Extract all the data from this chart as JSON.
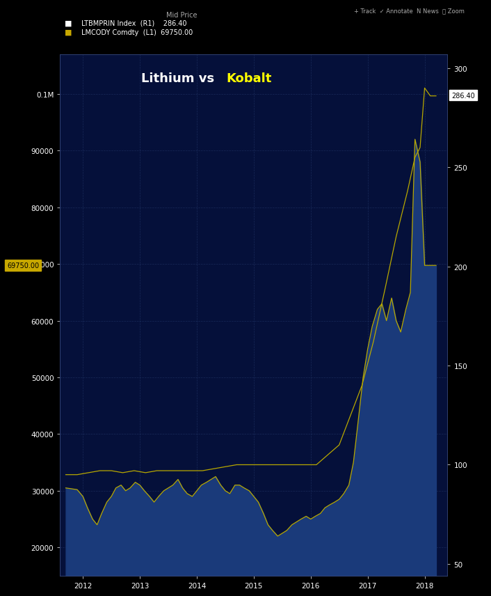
{
  "title_white": "Lithium vs  ",
  "title_yellow": "Kobalt",
  "bg_color": "#000000",
  "plot_bg_color": "#05103a",
  "fill_color": "#1a3a7a",
  "line_color": "#b8a800",
  "axis_color": "#ffffff",
  "grid_color": "#1e3060",
  "legend_label1": "LTBMPRIN Index  (R1)    286.40",
  "legend_label2": "LMCODY Comdty  (L1)  69750.00",
  "header_text": "Mid Price",
  "label_286": "286.40",
  "label_69750": "69750.00",
  "left_ylim": [
    15000,
    107000
  ],
  "right_ylim": [
    44,
    307
  ],
  "left_yticks": [
    20000,
    30000,
    40000,
    50000,
    60000,
    70000,
    80000,
    90000,
    100000
  ],
  "left_ytick_labels": [
    "20000",
    "30000",
    "40000",
    "50000",
    "60000",
    "70000",
    "80000",
    "90000",
    "0.1M"
  ],
  "right_yticks": [
    50,
    100,
    150,
    200,
    250,
    300
  ],
  "right_ytick_labels": [
    "50",
    "100",
    "150",
    "200",
    "250",
    "300"
  ],
  "xlim_start": 2011.6,
  "xlim_end": 2018.4,
  "xtick_positions": [
    2012,
    2013,
    2014,
    2015,
    2016,
    2017,
    2018
  ],
  "xtick_labels": [
    "2012",
    "2013",
    "2014",
    "2015",
    "2016",
    "2017",
    "2018"
  ],
  "cobalt_x": [
    2011.7,
    2011.9,
    2012.0,
    2012.08,
    2012.17,
    2012.25,
    2012.33,
    2012.42,
    2012.5,
    2012.58,
    2012.67,
    2012.75,
    2012.83,
    2012.92,
    2013.0,
    2013.08,
    2013.17,
    2013.25,
    2013.33,
    2013.42,
    2013.5,
    2013.58,
    2013.67,
    2013.75,
    2013.83,
    2013.92,
    2014.0,
    2014.08,
    2014.17,
    2014.25,
    2014.33,
    2014.42,
    2014.5,
    2014.58,
    2014.67,
    2014.75,
    2014.83,
    2014.92,
    2015.0,
    2015.08,
    2015.17,
    2015.25,
    2015.33,
    2015.42,
    2015.5,
    2015.58,
    2015.67,
    2015.75,
    2015.83,
    2015.92,
    2016.0,
    2016.08,
    2016.17,
    2016.25,
    2016.33,
    2016.42,
    2016.5,
    2016.58,
    2016.67,
    2016.75,
    2016.83,
    2016.92,
    2017.0,
    2017.08,
    2017.17,
    2017.25,
    2017.33,
    2017.42,
    2017.5,
    2017.58,
    2017.67,
    2017.75,
    2017.83,
    2017.92,
    2018.0,
    2018.1,
    2018.2
  ],
  "cobalt_y": [
    30500,
    30200,
    29000,
    27000,
    25000,
    24000,
    26000,
    28000,
    29000,
    30500,
    31000,
    30000,
    30500,
    31500,
    31000,
    30000,
    29000,
    28000,
    29000,
    30000,
    30500,
    31000,
    32000,
    30500,
    29500,
    29000,
    30000,
    31000,
    31500,
    32000,
    32500,
    31000,
    30000,
    29500,
    31000,
    31000,
    30500,
    30000,
    29000,
    28000,
    26000,
    24000,
    23000,
    22000,
    22500,
    23000,
    24000,
    24500,
    25000,
    25500,
    25000,
    25500,
    26000,
    27000,
    27500,
    28000,
    28500,
    29500,
    31000,
    35000,
    42000,
    50000,
    55000,
    59000,
    62000,
    63000,
    60000,
    64000,
    60000,
    58000,
    62000,
    65000,
    92000,
    88000,
    69750,
    69750,
    69750
  ],
  "lithium_x": [
    2011.7,
    2011.9,
    2012.1,
    2012.3,
    2012.5,
    2012.7,
    2012.9,
    2013.1,
    2013.3,
    2013.5,
    2013.7,
    2013.9,
    2014.1,
    2014.3,
    2014.5,
    2014.7,
    2014.9,
    2015.1,
    2015.3,
    2015.5,
    2015.7,
    2015.9,
    2016.1,
    2016.3,
    2016.5,
    2016.7,
    2016.9,
    2017.1,
    2017.3,
    2017.5,
    2017.7,
    2017.83,
    2017.92,
    2018.0,
    2018.1,
    2018.2
  ],
  "lithium_y": [
    95,
    95,
    96,
    97,
    97,
    96,
    97,
    96,
    97,
    97,
    97,
    97,
    97,
    98,
    99,
    100,
    100,
    100,
    100,
    100,
    100,
    100,
    100,
    105,
    110,
    125,
    140,
    162,
    188,
    215,
    238,
    255,
    260,
    290,
    286,
    286
  ]
}
